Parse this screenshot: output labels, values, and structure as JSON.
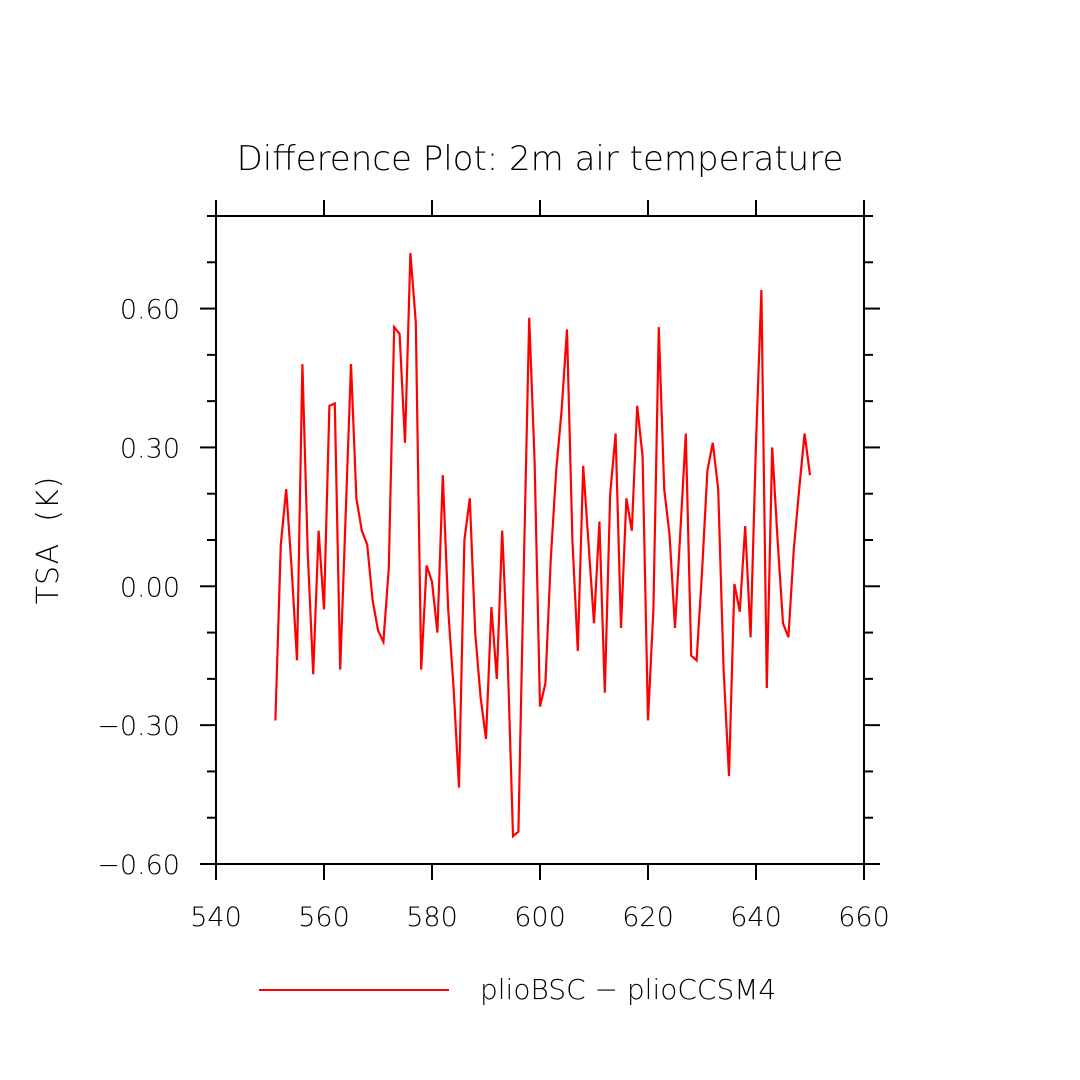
{
  "chart_data": {
    "type": "line",
    "title": "Difference Plot: 2m air temperature",
    "xlabel": "",
    "ylabel": "TSA  (K)",
    "xlim": [
      540,
      660
    ],
    "ylim": [
      -0.6,
      0.8
    ],
    "x_ticks": [
      540,
      560,
      580,
      600,
      620,
      640,
      660
    ],
    "x_tick_labels": [
      "540",
      "560",
      "580",
      "600",
      "620",
      "640",
      "660"
    ],
    "y_ticks": [
      -0.6,
      -0.3,
      0.0,
      0.3,
      0.6
    ],
    "y_tick_labels": [
      "−0.60",
      "−0.30",
      "0.00",
      "0.30",
      "0.60"
    ],
    "y_minor_step": 0.1,
    "grid": false,
    "legend_position": "bottom",
    "series": [
      {
        "name": "plioBSC − plioCCSM4",
        "color": "#ff0000",
        "x": [
          551,
          552,
          553,
          554,
          555,
          556,
          557,
          558,
          559,
          560,
          561,
          562,
          563,
          564,
          565,
          566,
          567,
          568,
          569,
          570,
          571,
          572,
          573,
          574,
          575,
          576,
          577,
          578,
          579,
          580,
          581,
          582,
          583,
          584,
          585,
          586,
          587,
          588,
          589,
          590,
          591,
          592,
          593,
          594,
          595,
          596,
          597,
          598,
          599,
          600,
          601,
          602,
          603,
          604,
          605,
          606,
          607,
          608,
          609,
          610,
          611,
          612,
          613,
          614,
          615,
          616,
          617,
          618,
          619,
          620,
          621,
          622,
          623,
          624,
          625,
          626,
          627,
          628,
          629,
          630,
          631,
          632,
          633,
          634,
          635,
          636,
          637,
          638,
          639,
          640,
          641,
          642,
          643,
          644,
          645,
          646,
          647,
          648,
          649,
          650
        ],
        "values": [
          -0.29,
          0.09,
          0.21,
          0.04,
          -0.16,
          0.48,
          0.07,
          -0.19,
          0.12,
          -0.05,
          0.39,
          0.395,
          -0.18,
          0.15,
          0.48,
          0.19,
          0.12,
          0.09,
          -0.03,
          -0.095,
          -0.12,
          0.04,
          0.56,
          0.545,
          0.31,
          0.72,
          0.57,
          -0.18,
          0.045,
          0.01,
          -0.1,
          0.24,
          -0.05,
          -0.22,
          -0.435,
          0.1,
          0.19,
          -0.1,
          -0.24,
          -0.33,
          -0.045,
          -0.2,
          0.12,
          -0.15,
          -0.54,
          -0.53,
          0.04,
          0.58,
          0.27,
          -0.26,
          -0.21,
          0.06,
          0.25,
          0.38,
          0.555,
          0.1,
          -0.14,
          0.26,
          0.09,
          -0.08,
          0.14,
          -0.23,
          0.2,
          0.33,
          -0.09,
          0.19,
          0.12,
          0.39,
          0.28,
          -0.29,
          -0.05,
          0.56,
          0.21,
          0.11,
          -0.09,
          0.12,
          0.33,
          -0.15,
          -0.16,
          0.03,
          0.25,
          0.31,
          0.21,
          -0.18,
          -0.41,
          0.005,
          -0.055,
          0.13,
          -0.11,
          0.31,
          0.64,
          -0.22,
          0.3,
          0.1,
          -0.08,
          -0.11,
          0.08,
          0.21,
          0.33,
          0.24
        ]
      }
    ]
  }
}
